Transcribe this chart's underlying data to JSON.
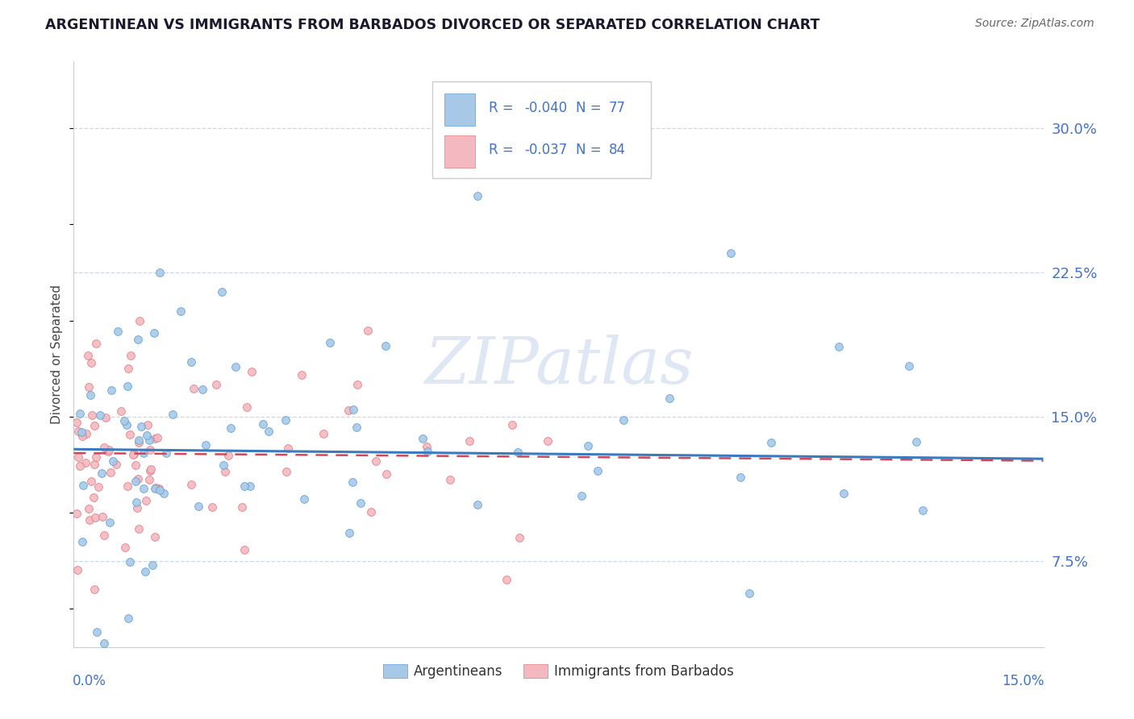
{
  "title": "ARGENTINEAN VS IMMIGRANTS FROM BARBADOS DIVORCED OR SEPARATED CORRELATION CHART",
  "source": "Source: ZipAtlas.com",
  "ylabel": "Divorced or Separated",
  "xmin": 0.0,
  "xmax": 0.15,
  "ymin": 0.03,
  "ymax": 0.335,
  "ytick_vals": [
    0.075,
    0.15,
    0.225,
    0.3
  ],
  "ytick_labels": [
    "7.5%",
    "15.0%",
    "22.5%",
    "30.0%"
  ],
  "blue_color": "#a8c8e8",
  "blue_edge": "#5a9fd4",
  "pink_color": "#f4b8c0",
  "pink_edge": "#e07880",
  "line_blue_color": "#3a7abf",
  "line_pink_color": "#d04858",
  "text_blue": "#4472c4",
  "grid_color": "#c8d8e8",
  "watermark_color": "#c8d8ec",
  "legend_r_blue": "R = -0.040",
  "legend_n_blue": "N = 77",
  "legend_r_pink": "R = -0.037",
  "legend_n_pink": "N = 84",
  "trend_blue_y0": 0.133,
  "trend_blue_y1": 0.128,
  "trend_pink_y0": 0.131,
  "trend_pink_y1": 0.127
}
